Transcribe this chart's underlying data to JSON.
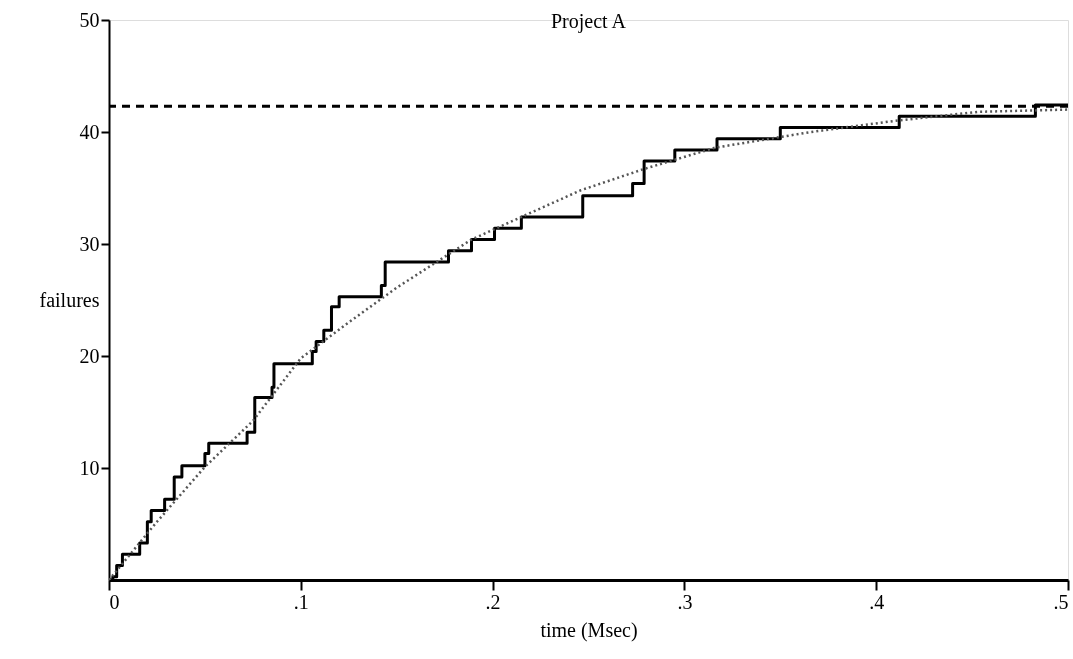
{
  "chart_data": {
    "type": "line",
    "title": "Project A",
    "xlabel": "time (Msec)",
    "ylabel": "failures",
    "xlim": [
      0,
      0.5
    ],
    "ylim": [
      0,
      50
    ],
    "xticks": [
      {
        "value": 0,
        "label": "0"
      },
      {
        "value": 0.1,
        "label": ".1"
      },
      {
        "value": 0.2,
        "label": ".2"
      },
      {
        "value": 0.3,
        "label": ".3"
      },
      {
        "value": 0.4,
        "label": ".4"
      },
      {
        "value": 0.5,
        "label": ".5"
      }
    ],
    "yticks": [
      10,
      20,
      30,
      40,
      50
    ],
    "grid": false,
    "marker": "none",
    "series": [
      {
        "type": "step",
        "color": "#000000",
        "line_style": "solid",
        "x": [
          0,
          0.002,
          0.004,
          0.007,
          0.016,
          0.02,
          0.022,
          0.029,
          0.034,
          0.038,
          0.05,
          0.052,
          0.072,
          0.076,
          0.085,
          0.086,
          0.106,
          0.108,
          0.112,
          0.116,
          0.12,
          0.142,
          0.144,
          0.177,
          0.189,
          0.201,
          0.215,
          0.247,
          0.273,
          0.279,
          0.295,
          0.317,
          0.35,
          0.412,
          0.483,
          0.5
        ],
        "values": [
          0,
          0.3,
          1.3,
          2.3,
          3.3,
          5.2,
          6.2,
          7.2,
          9.2,
          10.2,
          11.3,
          12.2,
          13.2,
          16.3,
          17.2,
          19.3,
          20.4,
          21.3,
          22.3,
          24.4,
          25.3,
          26.3,
          28.4,
          29.4,
          30.4,
          31.4,
          32.4,
          34.3,
          35.4,
          37.4,
          38.4,
          39.4,
          40.4,
          41.4,
          42.4,
          42.4
        ]
      },
      {
        "type": "line",
        "color": "#555555",
        "line_style": "dotted",
        "x": [
          0,
          0.025,
          0.05,
          0.075,
          0.1,
          0.125,
          0.15,
          0.189,
          0.22,
          0.246,
          0.279,
          0.316,
          0.366,
          0.41,
          0.453,
          0.5
        ],
        "values": [
          0,
          5.2,
          10.1,
          14.2,
          19.8,
          23.0,
          26.1,
          30.4,
          32.8,
          34.8,
          36.7,
          38.6,
          40.0,
          41.0,
          41.8,
          42.0
        ]
      }
    ],
    "ref_lines": [
      {
        "axis": "y",
        "value": 42.3,
        "color": "#000000",
        "line_style": "dashed"
      }
    ]
  }
}
